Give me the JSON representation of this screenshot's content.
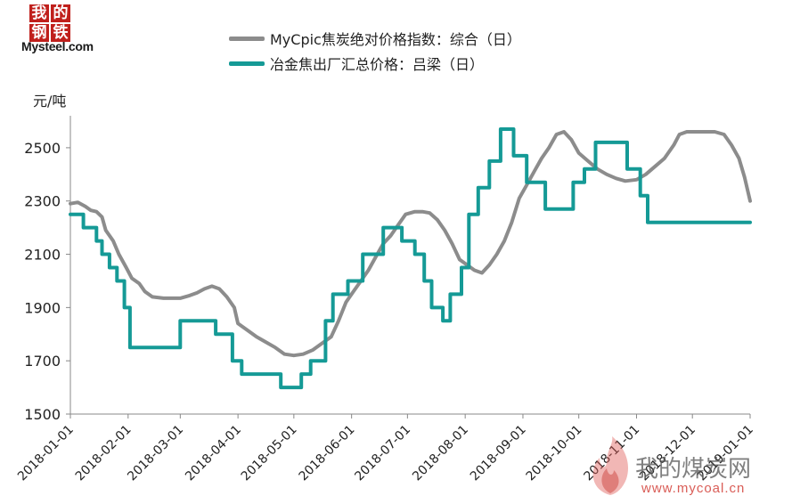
{
  "logo": {
    "chars": [
      "我",
      "的",
      "钢",
      "铁"
    ],
    "name": "Mysteel.com"
  },
  "watermark": {
    "text": "我的煤炭网",
    "url": "www.mycoal.cn"
  },
  "chart_data": {
    "type": "line",
    "title": "",
    "ylabel": "元/吨",
    "xlabel": "",
    "ylim": [
      1500,
      2600
    ],
    "yticks": [
      1500,
      1700,
      1900,
      2100,
      2300,
      2500
    ],
    "xlim": [
      "2018-01-01",
      "2019-01-01"
    ],
    "xtick_labels": [
      "2018-01-01",
      "2018-02-01",
      "2018-03-01",
      "2018-04-01",
      "2018-05-01",
      "2018-06-01",
      "2018-07-01",
      "2018-08-01",
      "2018-09-01",
      "2018-10-01",
      "2018-11-01",
      "2018-12-01",
      "2019-01-01"
    ],
    "grid": false,
    "legend_position": "top",
    "series": [
      {
        "name": "MyCpic焦炭绝对价格指数：综合（日）",
        "color": "#8c8c8c",
        "step": false,
        "points": [
          [
            "2018-01-01",
            2290
          ],
          [
            "2018-01-05",
            2295
          ],
          [
            "2018-01-09",
            2280
          ],
          [
            "2018-01-12",
            2265
          ],
          [
            "2018-01-15",
            2260
          ],
          [
            "2018-01-18",
            2240
          ],
          [
            "2018-01-20",
            2190
          ],
          [
            "2018-01-24",
            2150
          ],
          [
            "2018-01-27",
            2100
          ],
          [
            "2018-01-31",
            2050
          ],
          [
            "2018-02-03",
            2010
          ],
          [
            "2018-02-07",
            1990
          ],
          [
            "2018-02-10",
            1960
          ],
          [
            "2018-02-14",
            1940
          ],
          [
            "2018-02-20",
            1935
          ],
          [
            "2018-03-01",
            1935
          ],
          [
            "2018-03-06",
            1945
          ],
          [
            "2018-03-10",
            1955
          ],
          [
            "2018-03-14",
            1970
          ],
          [
            "2018-03-18",
            1980
          ],
          [
            "2018-03-22",
            1970
          ],
          [
            "2018-03-26",
            1940
          ],
          [
            "2018-03-30",
            1900
          ],
          [
            "2018-04-01",
            1840
          ],
          [
            "2018-04-06",
            1815
          ],
          [
            "2018-04-11",
            1790
          ],
          [
            "2018-04-16",
            1770
          ],
          [
            "2018-04-21",
            1750
          ],
          [
            "2018-04-26",
            1725
          ],
          [
            "2018-05-01",
            1720
          ],
          [
            "2018-05-06",
            1725
          ],
          [
            "2018-05-11",
            1740
          ],
          [
            "2018-05-16",
            1765
          ],
          [
            "2018-05-21",
            1790
          ],
          [
            "2018-05-25",
            1850
          ],
          [
            "2018-05-29",
            1920
          ],
          [
            "2018-06-02",
            1960
          ],
          [
            "2018-06-06",
            2000
          ],
          [
            "2018-06-10",
            2040
          ],
          [
            "2018-06-14",
            2090
          ],
          [
            "2018-06-18",
            2140
          ],
          [
            "2018-06-22",
            2170
          ],
          [
            "2018-06-26",
            2210
          ],
          [
            "2018-06-30",
            2250
          ],
          [
            "2018-07-05",
            2260
          ],
          [
            "2018-07-09",
            2260
          ],
          [
            "2018-07-13",
            2255
          ],
          [
            "2018-07-17",
            2230
          ],
          [
            "2018-07-21",
            2190
          ],
          [
            "2018-07-25",
            2140
          ],
          [
            "2018-07-29",
            2080
          ],
          [
            "2018-08-02",
            2060
          ],
          [
            "2018-08-06",
            2040
          ],
          [
            "2018-08-10",
            2030
          ],
          [
            "2018-08-14",
            2060
          ],
          [
            "2018-08-18",
            2100
          ],
          [
            "2018-08-22",
            2150
          ],
          [
            "2018-08-26",
            2220
          ],
          [
            "2018-08-30",
            2310
          ],
          [
            "2018-09-03",
            2360
          ],
          [
            "2018-09-07",
            2410
          ],
          [
            "2018-09-11",
            2460
          ],
          [
            "2018-09-15",
            2500
          ],
          [
            "2018-09-19",
            2550
          ],
          [
            "2018-09-23",
            2560
          ],
          [
            "2018-09-27",
            2530
          ],
          [
            "2018-10-01",
            2480
          ],
          [
            "2018-10-06",
            2450
          ],
          [
            "2018-10-11",
            2420
          ],
          [
            "2018-10-16",
            2400
          ],
          [
            "2018-10-21",
            2385
          ],
          [
            "2018-10-26",
            2375
          ],
          [
            "2018-11-01",
            2380
          ],
          [
            "2018-11-06",
            2400
          ],
          [
            "2018-11-11",
            2430
          ],
          [
            "2018-11-16",
            2460
          ],
          [
            "2018-11-21",
            2510
          ],
          [
            "2018-11-24",
            2550
          ],
          [
            "2018-11-28",
            2560
          ],
          [
            "2018-12-03",
            2560
          ],
          [
            "2018-12-08",
            2560
          ],
          [
            "2018-12-13",
            2560
          ],
          [
            "2018-12-18",
            2550
          ],
          [
            "2018-12-22",
            2510
          ],
          [
            "2018-12-26",
            2460
          ],
          [
            "2018-12-29",
            2390
          ],
          [
            "2019-01-01",
            2300
          ]
        ]
      },
      {
        "name": "冶金焦出厂汇总价格：吕梁（日）",
        "color": "#159a96",
        "step": true,
        "points": [
          [
            "2018-01-01",
            2250
          ],
          [
            "2018-01-08",
            2200
          ],
          [
            "2018-01-15",
            2150
          ],
          [
            "2018-01-18",
            2100
          ],
          [
            "2018-01-22",
            2050
          ],
          [
            "2018-01-26",
            2000
          ],
          [
            "2018-01-30",
            1900
          ],
          [
            "2018-02-02",
            1750
          ],
          [
            "2018-02-15",
            1750
          ],
          [
            "2018-03-01",
            1850
          ],
          [
            "2018-03-14",
            1850
          ],
          [
            "2018-03-20",
            1800
          ],
          [
            "2018-03-29",
            1700
          ],
          [
            "2018-04-03",
            1650
          ],
          [
            "2018-04-24",
            1600
          ],
          [
            "2018-05-05",
            1650
          ],
          [
            "2018-05-10",
            1700
          ],
          [
            "2018-05-18",
            1850
          ],
          [
            "2018-05-22",
            1950
          ],
          [
            "2018-05-30",
            2000
          ],
          [
            "2018-06-07",
            2100
          ],
          [
            "2018-06-18",
            2200
          ],
          [
            "2018-06-28",
            2150
          ],
          [
            "2018-07-05",
            2100
          ],
          [
            "2018-07-10",
            2000
          ],
          [
            "2018-07-14",
            1900
          ],
          [
            "2018-07-20",
            1850
          ],
          [
            "2018-07-24",
            1950
          ],
          [
            "2018-07-30",
            2050
          ],
          [
            "2018-08-03",
            2250
          ],
          [
            "2018-08-08",
            2350
          ],
          [
            "2018-08-14",
            2450
          ],
          [
            "2018-08-20",
            2570
          ],
          [
            "2018-08-27",
            2470
          ],
          [
            "2018-09-03",
            2370
          ],
          [
            "2018-09-13",
            2270
          ],
          [
            "2018-09-28",
            2370
          ],
          [
            "2018-10-04",
            2420
          ],
          [
            "2018-10-10",
            2520
          ],
          [
            "2018-10-27",
            2420
          ],
          [
            "2018-11-03",
            2320
          ],
          [
            "2018-11-07",
            2220
          ],
          [
            "2018-12-03",
            2220
          ],
          [
            "2018-12-08",
            2220
          ],
          [
            "2018-12-20",
            2220
          ],
          [
            "2019-01-01",
            2220
          ]
        ]
      }
    ]
  }
}
